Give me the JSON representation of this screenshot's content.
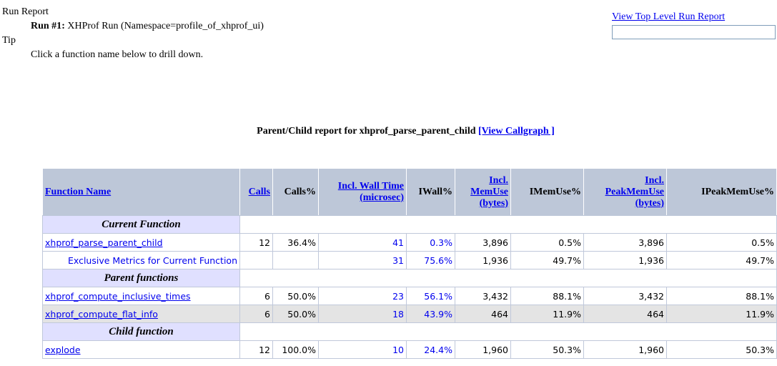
{
  "header": {
    "run_report": "Run Report",
    "run_label": "Run #1",
    "run_sep": ":",
    "run_desc": " XHProf Run (Namespace=profile_of_xhprof_ui)",
    "tip": "Tip",
    "tip_text": "Click a function name below to drill down."
  },
  "top_link": "View Top Level Run Report",
  "report_title": "Parent/Child report for xhprof_parse_parent_child",
  "callgraph_link": "[View Callgraph ]",
  "columns": [
    "Function Name",
    "Calls",
    "Calls%",
    "Incl. Wall Time (microsec)",
    "IWall%",
    "Incl. MemUse (bytes)",
    "IMemUse%",
    "Incl. PeakMemUse (bytes)",
    "IPeakMemUse%"
  ],
  "sections": {
    "current": "Current Function",
    "parents": "Parent functions",
    "children": "Child function"
  },
  "rows": {
    "current": [
      "xhprof_parse_parent_child",
      "12",
      "36.4%",
      "41",
      "0.3%",
      "3,896",
      "0.5%",
      "3,896",
      "0.5%"
    ],
    "exclusive": [
      "Exclusive Metrics for Current Function",
      "",
      "",
      "31",
      "75.6%",
      "1,936",
      "49.7%",
      "1,936",
      "49.7%"
    ],
    "parent1": [
      "xhprof_compute_inclusive_times",
      "6",
      "50.0%",
      "23",
      "56.1%",
      "3,432",
      "88.1%",
      "3,432",
      "88.1%"
    ],
    "parent2": [
      "xhprof_compute_flat_info",
      "6",
      "50.0%",
      "18",
      "43.9%",
      "464",
      "11.9%",
      "464",
      "11.9%"
    ],
    "child1": [
      "explode",
      "12",
      "100.0%",
      "10",
      "24.4%",
      "1,960",
      "50.3%",
      "1,960",
      "50.3%"
    ]
  }
}
